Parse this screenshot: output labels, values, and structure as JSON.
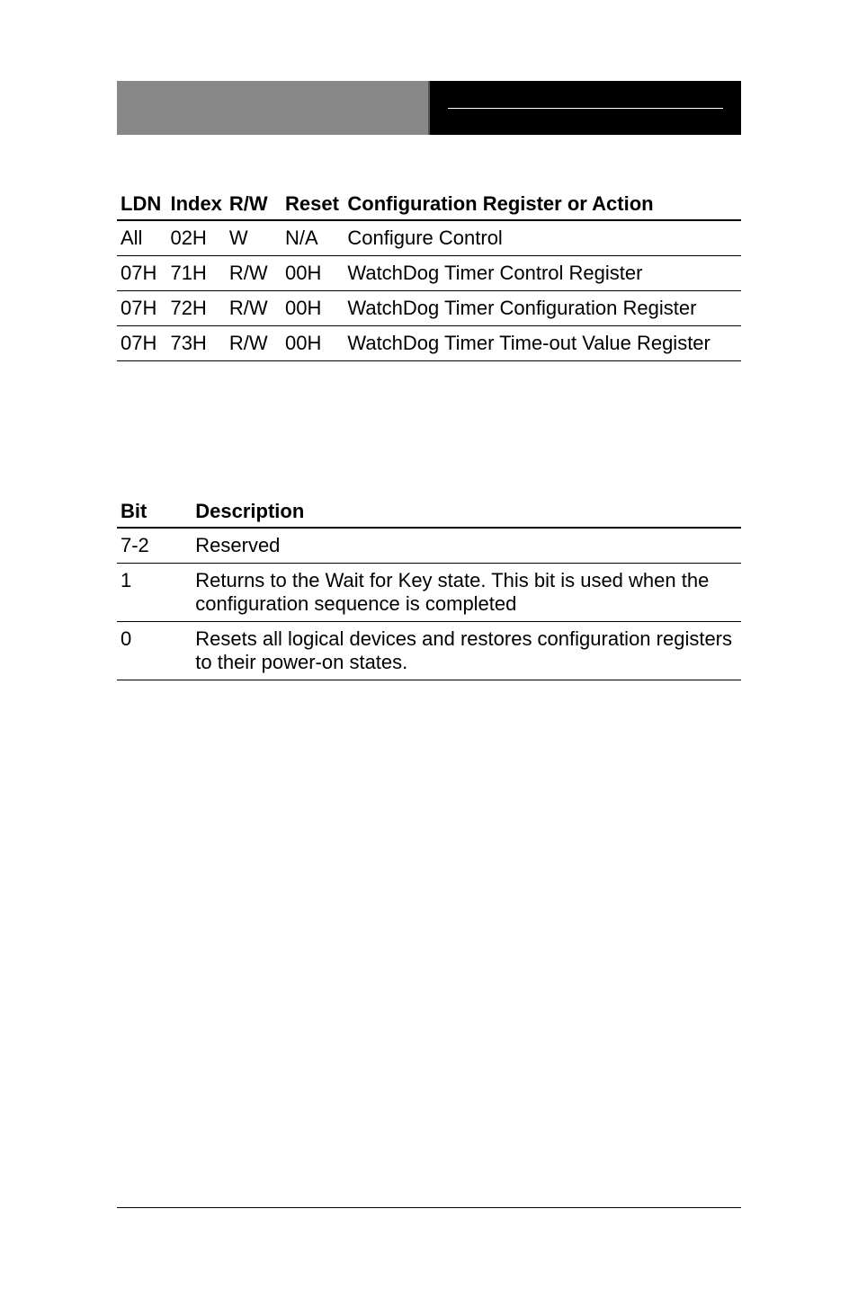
{
  "table1": {
    "headers": [
      "LDN",
      "Index",
      "R/W",
      "Reset",
      "Configuration Register or Action"
    ],
    "rows": [
      {
        "ldn": "All",
        "index": "02H",
        "rw": "W",
        "reset": "N/A",
        "config": "Configure Control"
      },
      {
        "ldn": "07H",
        "index": "71H",
        "rw": "R/W",
        "reset": "00H",
        "config": "WatchDog Timer Control Register"
      },
      {
        "ldn": "07H",
        "index": "72H",
        "rw": "R/W",
        "reset": "00H",
        "config": "WatchDog Timer Configuration Register"
      },
      {
        "ldn": "07H",
        "index": "73H",
        "rw": "R/W",
        "reset": "00H",
        "config": "WatchDog Timer Time-out Value Register"
      }
    ]
  },
  "table2": {
    "headers": [
      "Bit",
      "Description"
    ],
    "rows": [
      {
        "bit": "7-2",
        "desc": "Reserved"
      },
      {
        "bit": "1",
        "desc": "Returns to the Wait for Key state. This bit is used when the configuration sequence is completed"
      },
      {
        "bit": "0",
        "desc": "Resets all logical devices and restores configuration registers to their power-on states."
      }
    ]
  },
  "colors": {
    "background": "#ffffff",
    "text": "#000000",
    "header_left": "#888888",
    "header_right": "#000000",
    "header_divider": "#555555",
    "header_line": "#ffffff",
    "border": "#000000"
  },
  "fonts": {
    "family": "Arial",
    "header_size": 22,
    "body_size": 22,
    "header_weight": "bold"
  }
}
